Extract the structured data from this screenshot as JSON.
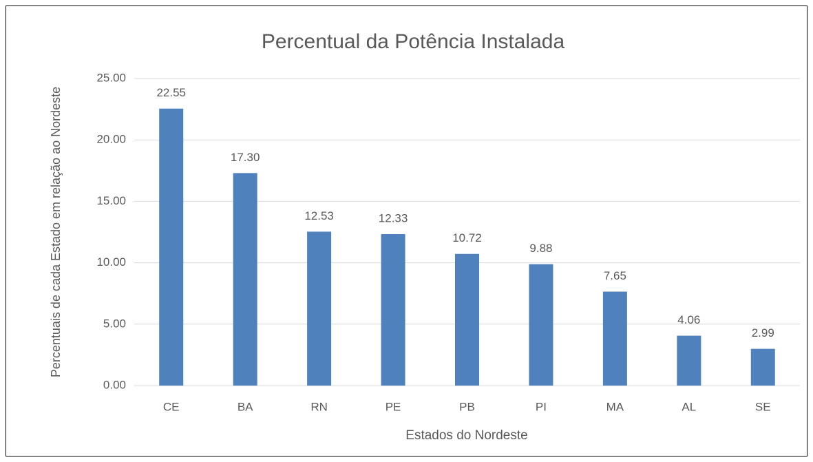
{
  "chart_data": {
    "type": "bar",
    "title": "Percentual da Potência Instalada",
    "xlabel": "Estados do Nordeste",
    "ylabel": "Percentuais de cada Estado em relação ao Nordeste",
    "categories": [
      "CE",
      "BA",
      "RN",
      "PE",
      "PB",
      "PI",
      "MA",
      "AL",
      "SE"
    ],
    "values": [
      22.55,
      17.3,
      12.53,
      12.33,
      10.72,
      9.88,
      7.65,
      4.06,
      2.99
    ],
    "value_labels": [
      "22.55",
      "17.30",
      "12.53",
      "12.33",
      "10.72",
      "9.88",
      "7.65",
      "4.06",
      "2.99"
    ],
    "color": "#4f81bd",
    "ylim": [
      0,
      25
    ],
    "yticks": [
      {
        "value": 0,
        "label": "0.00"
      },
      {
        "value": 5,
        "label": "5.00"
      },
      {
        "value": 10,
        "label": "10.00"
      },
      {
        "value": 15,
        "label": "15.00"
      },
      {
        "value": 20,
        "label": "20.00"
      },
      {
        "value": 25,
        "label": "25.00"
      }
    ],
    "grid": true
  }
}
